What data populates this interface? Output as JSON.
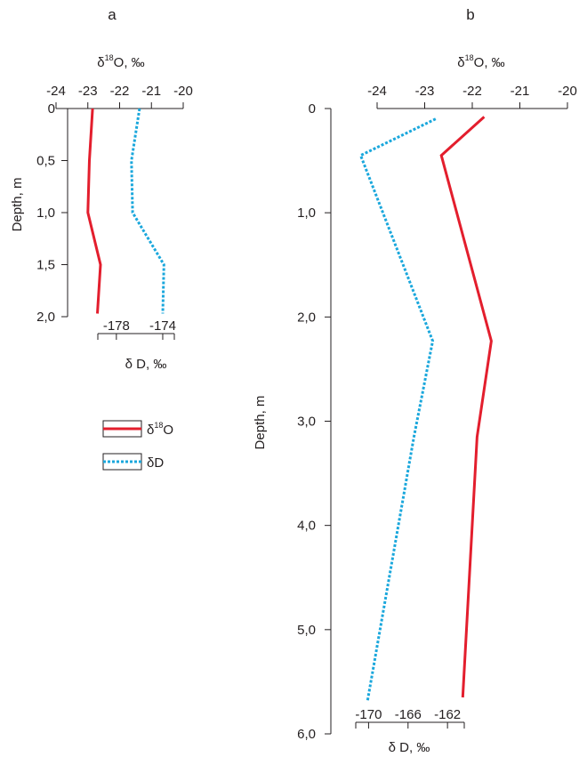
{
  "legend": {
    "o18_label": "δ",
    "o18_sup": "18",
    "o18_suffix": "O",
    "dd_label": "δD"
  },
  "chart_data": [
    {
      "type": "line",
      "panel_label": "a",
      "top_axis": {
        "label_prefix": "δ",
        "label_sup": "18",
        "label_suffix": "O, ‰",
        "range": [
          -24,
          -20
        ],
        "ticks": [
          -24,
          -23,
          -22,
          -21,
          -20
        ],
        "tick_labels": [
          "-24",
          "-23",
          "-22",
          "-21",
          "-20"
        ]
      },
      "bottom_axis": {
        "label": "δ D, ‰",
        "range": [
          -179.6,
          -173.0
        ],
        "ticks": [
          -178,
          -174
        ],
        "tick_labels": [
          "-178",
          "-174"
        ]
      },
      "y_axis": {
        "label": "Depth, m",
        "range": [
          0,
          2.0
        ],
        "inverted": true,
        "ticks": [
          0,
          0.5,
          1.0,
          1.5,
          2.0
        ],
        "tick_labels": [
          "0",
          "0,5",
          "1,0",
          "1,5",
          "2,0"
        ]
      },
      "series": [
        {
          "name": "δ18O",
          "axis": "top",
          "color": "#e31e2d",
          "style": "solid",
          "points": [
            [
              -22.85,
              0
            ],
            [
              -22.95,
              0.5
            ],
            [
              -23.0,
              1.0
            ],
            [
              -22.6,
              1.5
            ],
            [
              -22.7,
              1.97
            ]
          ]
        },
        {
          "name": "δD",
          "axis": "bottom",
          "color": "#1aa7dc",
          "style": "dotted",
          "points": [
            [
              -176.0,
              0
            ],
            [
              -176.7,
              0.5
            ],
            [
              -176.6,
              1.0
            ],
            [
              -173.9,
              1.5
            ],
            [
              -174.0,
              1.97
            ]
          ]
        }
      ]
    },
    {
      "type": "line",
      "panel_label": "b",
      "top_axis": {
        "label_prefix": "δ",
        "label_sup": "18",
        "label_suffix": "O, ‰",
        "range": [
          -24,
          -20
        ],
        "ticks": [
          -24,
          -23,
          -22,
          -21,
          -20
        ],
        "tick_labels": [
          "-24",
          "-23",
          "-22",
          "-21",
          "-20"
        ]
      },
      "bottom_axis": {
        "label": "δ D, ‰",
        "range": [
          -171.3,
          -160.3
        ],
        "ticks": [
          -170,
          -166,
          -162
        ],
        "tick_labels": [
          "-170",
          "-166",
          "-162"
        ]
      },
      "y_axis": {
        "label": "Depth, m",
        "range": [
          0,
          6.0
        ],
        "inverted": true,
        "ticks": [
          0,
          1.0,
          2.0,
          3.0,
          4.0,
          5.0,
          6.0
        ],
        "tick_labels": [
          "0",
          "1,0",
          "2,0",
          "3,0",
          "4,0",
          "5,0",
          "6,0"
        ]
      },
      "series": [
        {
          "name": "δ18O",
          "axis": "top",
          "color": "#e31e2d",
          "style": "solid",
          "points": [
            [
              -21.75,
              0.08
            ],
            [
              -22.65,
              0.45
            ],
            [
              -21.6,
              2.23
            ],
            [
              -21.9,
              3.15
            ],
            [
              -22.2,
              5.65
            ]
          ]
        },
        {
          "name": "δD",
          "axis": "bottom",
          "color": "#1aa7dc",
          "style": "dotted",
          "points": [
            [
              -163.2,
              0.1
            ],
            [
              -170.8,
              0.45
            ],
            [
              -163.5,
              2.23
            ],
            [
              -165.4,
              3.15
            ],
            [
              -170.1,
              5.68
            ]
          ]
        }
      ]
    }
  ]
}
